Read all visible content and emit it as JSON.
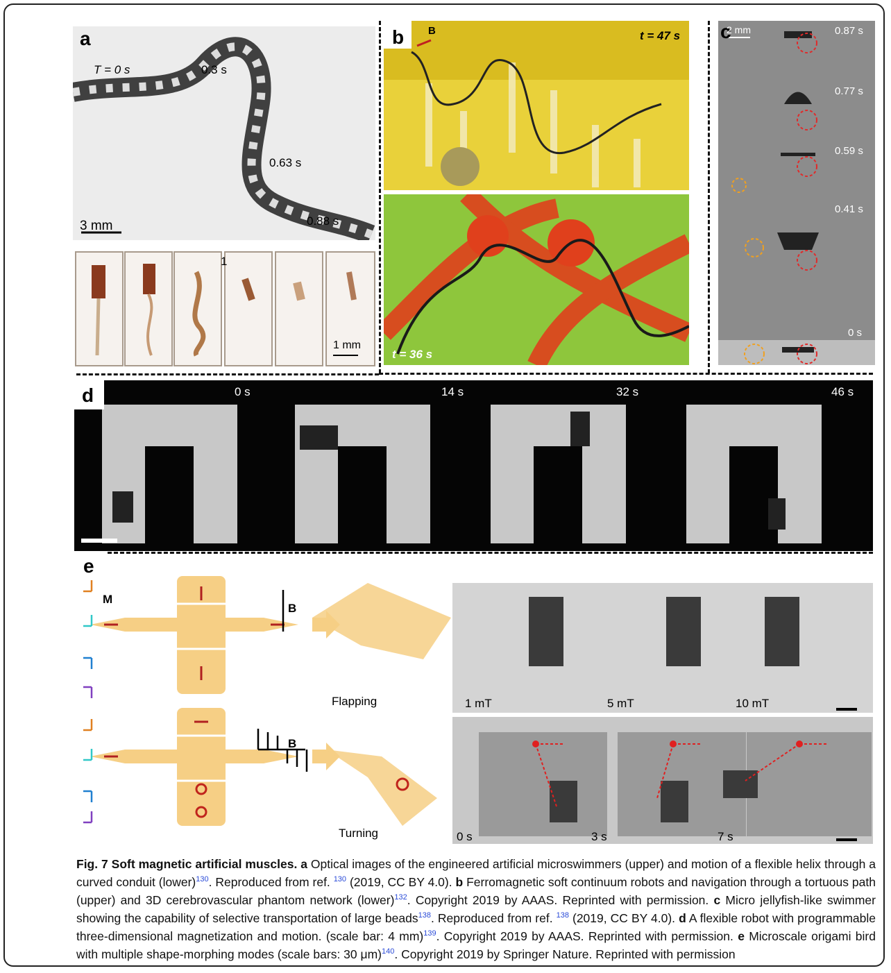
{
  "figure": {
    "a": {
      "label": "a",
      "annotations": [
        "T = 0 s",
        "0.3 s",
        "0.63 s",
        "0.88 s",
        "3 mm",
        "1",
        "1 mm"
      ]
    },
    "b": {
      "label": "b",
      "annotations": [
        "B",
        "t = 47 s",
        "t = 36 s"
      ]
    },
    "c": {
      "label": "c",
      "annotations": [
        "2 mm",
        "0.87 s",
        "0.77 s",
        "0.59 s",
        "0.41 s",
        "0 s"
      ]
    },
    "d": {
      "label": "d",
      "annotations": [
        "0 s",
        "14 s",
        "32 s",
        "46 s"
      ]
    },
    "e": {
      "label": "e",
      "annotations": [
        "M",
        "B",
        "Flapping",
        "B",
        "Turning",
        "1 mT",
        "5 mT",
        "10 mT",
        "0 s",
        "3 s",
        "7 s"
      ]
    }
  },
  "caption": [
    {
      "text": "Fig. 7 Soft magnetic artificial muscles.",
      "style": "bold"
    },
    {
      "text": " a",
      "style": "bold"
    },
    {
      "text": " Optical images of the engineered artificial microswimmers (upper) and motion of a flexible helix through a curved conduit (lower)",
      "style": "plain"
    },
    {
      "text": "130",
      "style": "sup"
    },
    {
      "text": ". Reproduced from ref. ",
      "style": "plain"
    },
    {
      "text": "130",
      "style": "sup"
    },
    {
      "text": " (2019, CC BY 4.0). ",
      "style": "plain"
    },
    {
      "text": "b",
      "style": "bold"
    },
    {
      "text": " Ferromagnetic soft continuum robots and navigation through a tortuous path (upper) and 3D cerebrovascular phantom network (lower)",
      "style": "plain"
    },
    {
      "text": "132",
      "style": "sup"
    },
    {
      "text": ". Copyright 2019 by AAAS. Reprinted with permission. ",
      "style": "plain"
    },
    {
      "text": "c",
      "style": "bold"
    },
    {
      "text": " Micro jellyfish-like swimmer showing the capability of selective transportation of large beads",
      "style": "plain"
    },
    {
      "text": "138",
      "style": "sup"
    },
    {
      "text": ". Reproduced from ref. ",
      "style": "plain"
    },
    {
      "text": "138",
      "style": "sup"
    },
    {
      "text": " (2019, CC BY 4.0). ",
      "style": "plain"
    },
    {
      "text": "d",
      "style": "bold"
    },
    {
      "text": " A flexible robot with programmable three-dimensional magnetization and motion. (scale bar: 4 mm)",
      "style": "plain"
    },
    {
      "text": "139",
      "style": "sup"
    },
    {
      "text": ". Copyright 2019 by AAAS. Reprinted with permission. ",
      "style": "plain"
    },
    {
      "text": "e",
      "style": "bold"
    },
    {
      "text": " Microscale origami bird with multiple shape-morphing modes (scale bars: 30 μm)",
      "style": "plain"
    },
    {
      "text": "140",
      "style": "sup"
    },
    {
      "text": ". Copyright 2019 by Springer Nature. Reprinted with permission",
      "style": "plain"
    }
  ]
}
